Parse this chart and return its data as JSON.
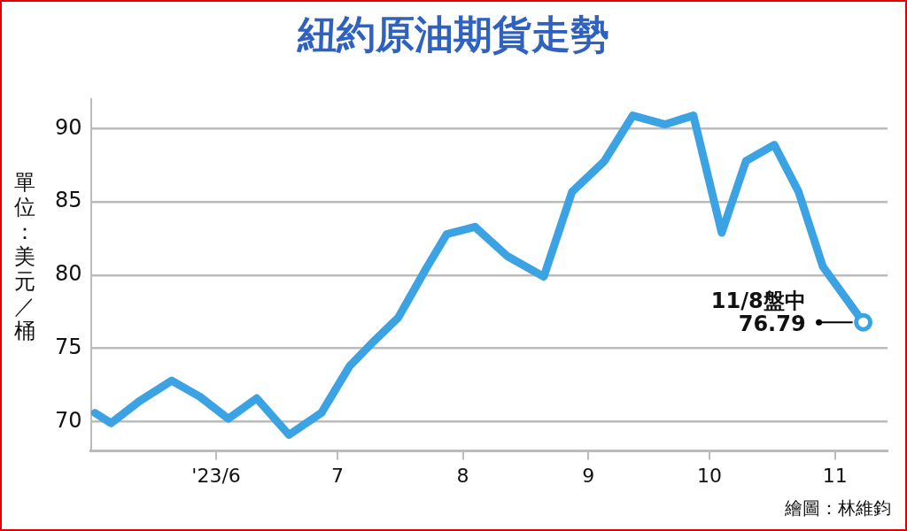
{
  "chart_data": {
    "type": "line",
    "title": "紐約原油期貨走勢",
    "ylabel": "單位：美元／桶",
    "x": [
      "2023-05-02",
      "2023-05-06",
      "2023-05-13",
      "2023-05-21",
      "2023-05-28",
      "2023-06-04",
      "2023-06-11",
      "2023-06-19",
      "2023-06-27",
      "2023-07-04",
      "2023-07-10",
      "2023-07-16",
      "2023-07-23",
      "2023-07-28",
      "2023-08-04",
      "2023-08-12",
      "2023-08-21",
      "2023-08-28",
      "2023-09-05",
      "2023-09-12",
      "2023-09-20",
      "2023-09-27",
      "2023-10-04",
      "2023-10-10",
      "2023-10-17",
      "2023-10-23",
      "2023-10-29",
      "2023-11-08"
    ],
    "series": [
      {
        "color": "#3ba3e3",
        "values": [
          70.6,
          69.9,
          71.4,
          72.8,
          71.7,
          70.2,
          71.6,
          69.1,
          70.6,
          73.8,
          75.5,
          77.1,
          80.5,
          82.8,
          83.3,
          81.3,
          79.9,
          85.7,
          87.8,
          90.9,
          90.3,
          90.9,
          82.9,
          87.8,
          88.9,
          85.7,
          80.6,
          76.79
        ]
      }
    ],
    "xlim": [
      "2023-05-01",
      "2023-11-14"
    ],
    "xticks": [
      {
        "value": "2023-06-01",
        "label": "'23/6"
      },
      {
        "value": "2023-07-01",
        "label": "7"
      },
      {
        "value": "2023-08-01",
        "label": "8"
      },
      {
        "value": "2023-09-01",
        "label": "9"
      },
      {
        "value": "2023-10-01",
        "label": "10"
      },
      {
        "value": "2023-11-01",
        "label": "11"
      }
    ],
    "ylim": [
      68,
      92
    ],
    "yticks": [
      70,
      75,
      80,
      85,
      90
    ],
    "grid": "y",
    "legend": false,
    "marker": "none",
    "line_style": "solid",
    "annotations": [
      {
        "text": "11/8盤中\n76.79",
        "x": "2023-11-08",
        "y": 76.79
      },
      "繪圖：林維鈞"
    ]
  }
}
